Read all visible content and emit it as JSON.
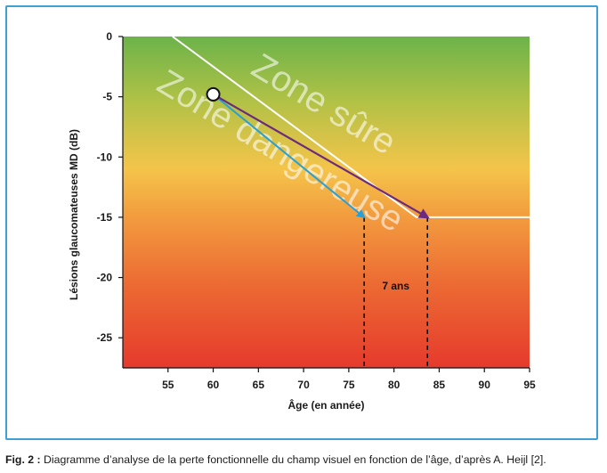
{
  "chart_data": {
    "type": "line",
    "xlabel": "Âge (en année)",
    "ylabel": "Lésions glaucomateuses MD (dB)",
    "xlim": [
      50,
      95
    ],
    "ylim": [
      -27.5,
      0
    ],
    "x_ticks": [
      55,
      60,
      65,
      70,
      75,
      80,
      85,
      90,
      95
    ],
    "y_ticks": [
      0,
      -5,
      -10,
      -15,
      -20,
      -25
    ],
    "background": "vertical gradient green (top) to yellow to orange to red (bottom)",
    "grid": false,
    "series": [
      {
        "kind": "boundary",
        "color": "#ffffff",
        "points": [
          [
            55.5,
            0
          ],
          [
            82.5,
            -15
          ],
          [
            95,
            -15
          ]
        ]
      },
      {
        "kind": "arrow",
        "color": "#2a9fd6",
        "points": [
          [
            60,
            -4.8
          ],
          [
            76.7,
            -15
          ]
        ]
      },
      {
        "kind": "arrow",
        "color": "#6b2a7e",
        "points": [
          [
            60,
            -4.8
          ],
          [
            83.7,
            -15
          ]
        ]
      }
    ],
    "start_point": {
      "x": 60,
      "y": -4.8
    },
    "dashed_verticals": [
      76.7,
      83.7
    ],
    "zones": [
      {
        "label": "Zone sûre"
      },
      {
        "label": "Zone dangereuse"
      }
    ],
    "annotations": [
      {
        "text": "7 ans"
      }
    ]
  },
  "caption": {
    "prefix": "Fig. 2 :",
    "text": " Diagramme d’analyse de la perte fonctionnelle du champ visuel en fonction de l’âge, d’après A. Heijl [2]."
  }
}
